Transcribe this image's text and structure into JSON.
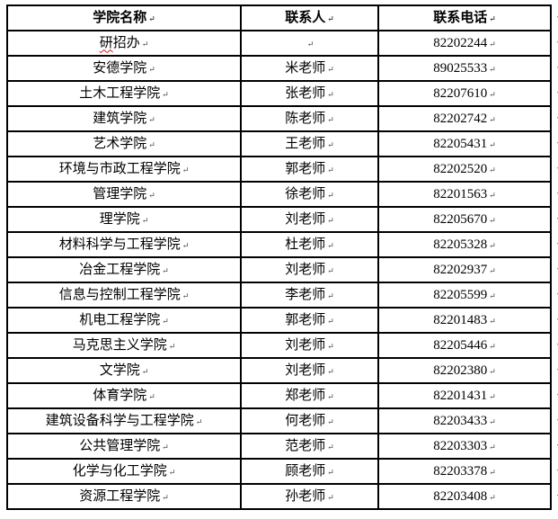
{
  "document": {
    "description": "college contact phone table"
  },
  "table": {
    "headers": [
      "学院名称",
      "联系人",
      "联系电话"
    ],
    "rows": [
      {
        "name": "研招办",
        "contact": "",
        "phone": "82202244"
      },
      {
        "name": "安德学院",
        "contact": "米老师",
        "phone": "89025533"
      },
      {
        "name": "土木工程学院",
        "contact": "张老师",
        "phone": "82207610"
      },
      {
        "name": "建筑学院",
        "contact": "陈老师",
        "phone": "82202742"
      },
      {
        "name": "艺术学院",
        "contact": "王老师",
        "phone": "82205431"
      },
      {
        "name": "环境与市政工程学院",
        "contact": "郭老师",
        "phone": "82202520"
      },
      {
        "name": "管理学院",
        "contact": "徐老师",
        "phone": "82201563"
      },
      {
        "name": "理学院",
        "contact": "刘老师",
        "phone": "82205670"
      },
      {
        "name": "材料科学与工程学院",
        "contact": "杜老师",
        "phone": "82205328"
      },
      {
        "name": "冶金工程学院",
        "contact": "刘老师",
        "phone": "82202937"
      },
      {
        "name": "信息与控制工程学院",
        "contact": "李老师",
        "phone": "82205599"
      },
      {
        "name": "机电工程学院",
        "contact": "郭老师",
        "phone": "82201483"
      },
      {
        "name": "马克思主义学院",
        "contact": "刘老师",
        "phone": "82205446"
      },
      {
        "name": "文学院",
        "contact": "刘老师",
        "phone": "82202380"
      },
      {
        "name": "体育学院",
        "contact": "郑老师",
        "phone": "82201431"
      },
      {
        "name": "建筑设备科学与工程学院",
        "contact": "何老师",
        "phone": "82203433"
      },
      {
        "name": "公共管理学院",
        "contact": "范老师",
        "phone": "82203303"
      },
      {
        "name": "化学与化工学院",
        "contact": "顾老师",
        "phone": "82203378"
      },
      {
        "name": "资源工程学院",
        "contact": "孙老师",
        "phone": "82203408"
      }
    ]
  },
  "marks": {
    "cell_return": "↵",
    "row_end": "◄"
  },
  "spellcheck": {
    "row_index": 0,
    "prefix_length": 1,
    "color": "#e01010"
  },
  "colors": {
    "border": "#000000",
    "text": "#000000",
    "formatting_mark": "#444444",
    "row_end_mark": "#666666"
  }
}
